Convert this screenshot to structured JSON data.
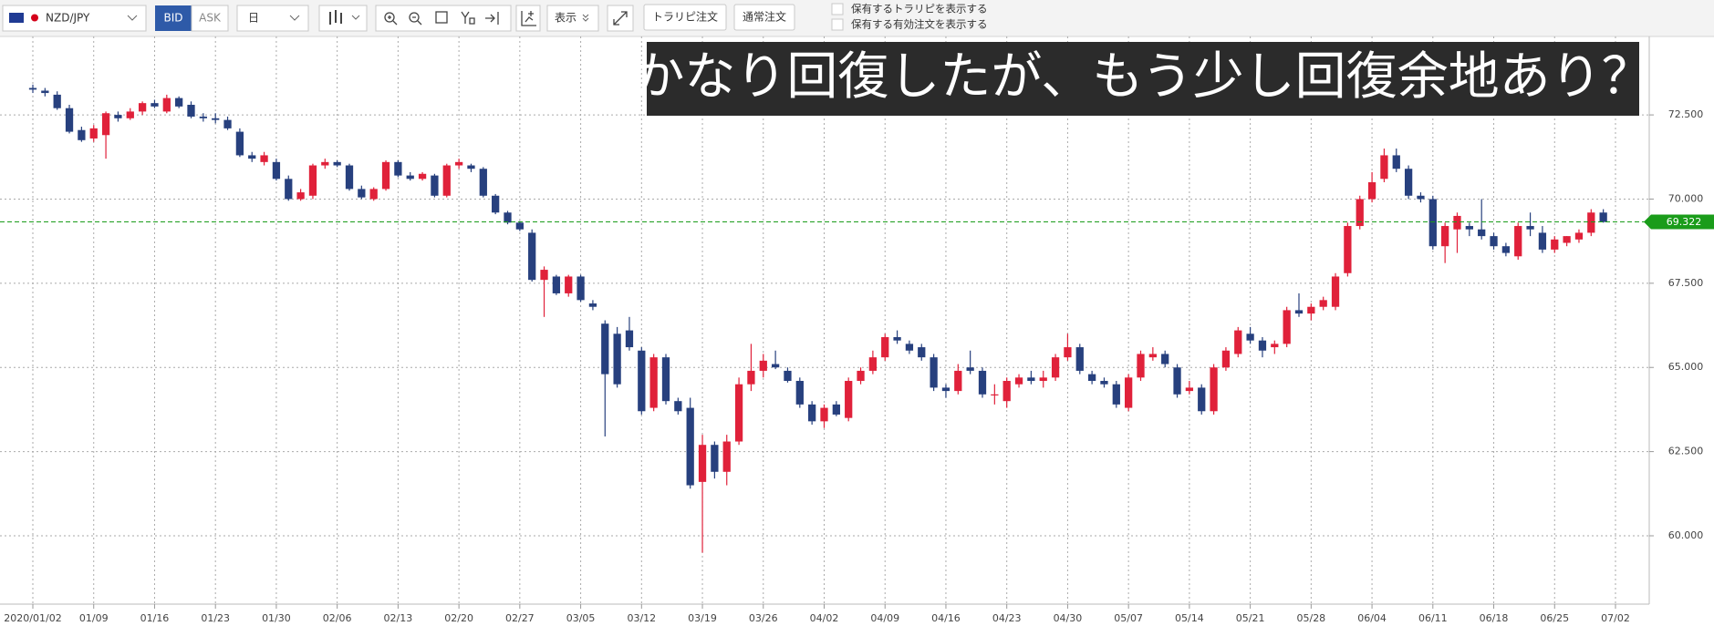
{
  "toolbar": {
    "pair": "NZD/JPY",
    "bid": "BID",
    "ask": "ASK",
    "period": "日",
    "display": "表示",
    "buttons": [
      "トラリピ注文",
      "通常注文"
    ],
    "checkboxes": [
      "保有するトラリピを表示する",
      "保有する有効注文を表示する"
    ]
  },
  "chart_data": {
    "type": "candlestick",
    "annotation": "かなり回復したが、もう少し回復余地あり？",
    "categories": [
      "2020/01/02",
      null,
      null,
      null,
      null,
      "01/09",
      null,
      null,
      null,
      null,
      "01/16",
      null,
      null,
      null,
      null,
      "01/23",
      null,
      null,
      null,
      null,
      "01/30",
      null,
      null,
      null,
      null,
      "02/06",
      null,
      null,
      null,
      null,
      "02/13",
      null,
      null,
      null,
      null,
      "02/20",
      null,
      null,
      null,
      null,
      "02/27",
      null,
      null,
      null,
      null,
      "03/05",
      null,
      null,
      null,
      null,
      "03/12",
      null,
      null,
      null,
      null,
      "03/19",
      null,
      null,
      null,
      null,
      "03/26",
      null,
      null,
      null,
      null,
      "04/02",
      null,
      null,
      null,
      null,
      "04/09",
      null,
      null,
      null,
      null,
      "04/16",
      null,
      null,
      null,
      null,
      "04/23",
      null,
      null,
      null,
      null,
      "04/30",
      null,
      null,
      null,
      null,
      "05/07",
      null,
      null,
      null,
      null,
      "05/14",
      null,
      null,
      null,
      null,
      "05/21",
      null,
      null,
      null,
      null,
      "05/28",
      null,
      null,
      null,
      null,
      "06/04",
      null,
      null,
      null,
      null,
      "06/11",
      null,
      null,
      null,
      null,
      "06/18",
      null,
      null,
      null,
      null,
      "06/25",
      null,
      null,
      null,
      null,
      "07/02"
    ],
    "ohlc": [
      [
        73.3,
        73.4,
        73.15,
        73.25
      ],
      [
        73.22,
        73.3,
        73.05,
        73.15
      ],
      [
        73.1,
        73.2,
        72.65,
        72.7
      ],
      [
        72.7,
        72.8,
        71.95,
        72.0
      ],
      [
        72.05,
        72.15,
        71.7,
        71.75
      ],
      [
        71.8,
        72.2,
        71.7,
        72.1
      ],
      [
        71.9,
        72.6,
        71.2,
        72.55
      ],
      [
        72.5,
        72.6,
        72.3,
        72.4
      ],
      [
        72.4,
        72.7,
        72.35,
        72.6
      ],
      [
        72.6,
        72.9,
        72.5,
        72.85
      ],
      [
        72.85,
        72.95,
        72.7,
        72.75
      ],
      [
        72.6,
        73.1,
        72.55,
        73.0
      ],
      [
        73.0,
        73.05,
        72.7,
        72.75
      ],
      [
        72.8,
        72.9,
        72.4,
        72.45
      ],
      [
        72.45,
        72.55,
        72.3,
        72.4
      ],
      [
        72.4,
        72.55,
        72.25,
        72.35
      ],
      [
        72.35,
        72.45,
        72.05,
        72.1
      ],
      [
        72.0,
        72.1,
        71.25,
        71.3
      ],
      [
        71.3,
        71.4,
        71.1,
        71.2
      ],
      [
        71.1,
        71.4,
        71.0,
        71.3
      ],
      [
        71.1,
        71.2,
        70.55,
        70.6
      ],
      [
        70.6,
        70.7,
        69.95,
        70.0
      ],
      [
        70.0,
        70.3,
        69.95,
        70.2
      ],
      [
        70.1,
        71.05,
        70.0,
        71.0
      ],
      [
        71.0,
        71.2,
        70.9,
        71.1
      ],
      [
        71.1,
        71.15,
        70.95,
        71.0
      ],
      [
        71.0,
        71.05,
        70.25,
        70.3
      ],
      [
        70.3,
        70.4,
        70.0,
        70.05
      ],
      [
        70.0,
        70.35,
        69.95,
        70.3
      ],
      [
        70.3,
        71.15,
        70.25,
        71.1
      ],
      [
        71.1,
        71.15,
        70.65,
        70.7
      ],
      [
        70.7,
        70.8,
        70.55,
        70.6
      ],
      [
        70.6,
        70.8,
        70.55,
        70.75
      ],
      [
        70.7,
        70.75,
        70.05,
        70.1
      ],
      [
        70.1,
        71.05,
        70.05,
        71.0
      ],
      [
        71.0,
        71.2,
        70.9,
        71.1
      ],
      [
        71.0,
        71.05,
        70.8,
        70.9
      ],
      [
        70.9,
        70.95,
        70.05,
        70.1
      ],
      [
        70.1,
        70.15,
        69.55,
        69.6
      ],
      [
        69.6,
        69.65,
        69.25,
        69.3
      ],
      [
        69.3,
        69.35,
        69.05,
        69.1
      ],
      [
        69.0,
        69.1,
        67.55,
        67.6
      ],
      [
        67.6,
        68.0,
        66.5,
        67.9
      ],
      [
        67.7,
        67.75,
        67.15,
        67.2
      ],
      [
        67.2,
        67.75,
        67.1,
        67.7
      ],
      [
        67.7,
        67.75,
        66.95,
        67.0
      ],
      [
        66.9,
        67.0,
        66.7,
        66.8
      ],
      [
        66.3,
        66.4,
        62.95,
        64.8
      ],
      [
        66.0,
        66.2,
        64.4,
        64.5
      ],
      [
        66.1,
        66.5,
        65.5,
        65.6
      ],
      [
        65.5,
        65.6,
        63.6,
        63.7
      ],
      [
        63.8,
        65.4,
        63.7,
        65.3
      ],
      [
        65.3,
        65.4,
        63.9,
        64.0
      ],
      [
        64.0,
        64.1,
        63.6,
        63.7
      ],
      [
        63.8,
        64.1,
        61.4,
        61.5
      ],
      [
        61.6,
        63.0,
        59.5,
        62.7
      ],
      [
        62.7,
        62.8,
        61.7,
        61.9
      ],
      [
        61.9,
        63.0,
        61.5,
        62.8
      ],
      [
        62.8,
        64.7,
        62.7,
        64.5
      ],
      [
        64.5,
        65.7,
        64.3,
        64.9
      ],
      [
        64.9,
        65.4,
        64.7,
        65.2
      ],
      [
        65.1,
        65.5,
        64.95,
        65.0
      ],
      [
        64.9,
        65.0,
        64.55,
        64.6
      ],
      [
        64.6,
        64.7,
        63.8,
        63.9
      ],
      [
        63.9,
        64.0,
        63.3,
        63.4
      ],
      [
        63.4,
        63.9,
        63.2,
        63.8
      ],
      [
        63.9,
        64.0,
        63.55,
        63.6
      ],
      [
        63.5,
        64.7,
        63.4,
        64.6
      ],
      [
        64.6,
        65.0,
        64.5,
        64.9
      ],
      [
        64.9,
        65.5,
        64.8,
        65.3
      ],
      [
        65.3,
        66.0,
        65.2,
        65.9
      ],
      [
        65.9,
        66.1,
        65.7,
        65.8
      ],
      [
        65.7,
        65.8,
        65.4,
        65.5
      ],
      [
        65.6,
        65.7,
        65.2,
        65.3
      ],
      [
        65.3,
        65.4,
        64.3,
        64.4
      ],
      [
        64.4,
        64.5,
        64.1,
        64.3
      ],
      [
        64.3,
        65.1,
        64.2,
        64.9
      ],
      [
        65.0,
        65.5,
        64.8,
        64.9
      ],
      [
        64.9,
        65.0,
        64.1,
        64.2
      ],
      [
        64.2,
        64.5,
        63.9,
        64.2
      ],
      [
        64.0,
        64.7,
        63.8,
        64.6
      ],
      [
        64.5,
        64.8,
        64.4,
        64.7
      ],
      [
        64.7,
        64.9,
        64.5,
        64.6
      ],
      [
        64.6,
        64.9,
        64.4,
        64.7
      ],
      [
        64.7,
        65.4,
        64.6,
        65.3
      ],
      [
        65.3,
        66.0,
        65.2,
        65.6
      ],
      [
        65.6,
        65.7,
        64.8,
        64.9
      ],
      [
        64.8,
        64.9,
        64.5,
        64.6
      ],
      [
        64.6,
        64.7,
        64.4,
        64.5
      ],
      [
        64.5,
        64.6,
        63.8,
        63.9
      ],
      [
        63.8,
        64.8,
        63.7,
        64.7
      ],
      [
        64.7,
        65.5,
        64.6,
        65.4
      ],
      [
        65.3,
        65.6,
        65.2,
        65.4
      ],
      [
        65.4,
        65.5,
        65.0,
        65.1
      ],
      [
        65.0,
        65.1,
        64.1,
        64.2
      ],
      [
        64.3,
        64.6,
        64.2,
        64.4
      ],
      [
        64.4,
        64.5,
        63.6,
        63.7
      ],
      [
        63.7,
        65.1,
        63.6,
        65.0
      ],
      [
        65.0,
        65.6,
        64.9,
        65.5
      ],
      [
        65.4,
        66.2,
        65.3,
        66.1
      ],
      [
        66.0,
        66.2,
        65.7,
        65.8
      ],
      [
        65.8,
        65.9,
        65.3,
        65.5
      ],
      [
        65.6,
        65.8,
        65.4,
        65.7
      ],
      [
        65.7,
        66.8,
        65.6,
        66.7
      ],
      [
        66.7,
        67.2,
        66.5,
        66.6
      ],
      [
        66.6,
        66.9,
        66.4,
        66.8
      ],
      [
        66.8,
        67.1,
        66.7,
        67.0
      ],
      [
        66.8,
        67.8,
        66.7,
        67.7
      ],
      [
        67.8,
        69.3,
        67.7,
        69.2
      ],
      [
        69.2,
        70.1,
        69.1,
        70.0
      ],
      [
        70.0,
        70.8,
        69.9,
        70.5
      ],
      [
        70.6,
        71.5,
        70.5,
        71.3
      ],
      [
        71.3,
        71.5,
        70.8,
        70.9
      ],
      [
        70.9,
        71.0,
        70.0,
        70.1
      ],
      [
        70.1,
        70.2,
        69.9,
        70.0
      ],
      [
        70.0,
        70.1,
        68.5,
        68.6
      ],
      [
        68.6,
        69.3,
        68.1,
        69.2
      ],
      [
        69.1,
        69.6,
        68.4,
        69.5
      ],
      [
        69.2,
        69.3,
        68.9,
        69.1
      ],
      [
        69.1,
        70.0,
        68.8,
        68.9
      ],
      [
        68.9,
        69.0,
        68.5,
        68.6
      ],
      [
        68.6,
        68.7,
        68.3,
        68.4
      ],
      [
        68.3,
        69.3,
        68.2,
        69.2
      ],
      [
        69.2,
        69.6,
        68.9,
        69.1
      ],
      [
        69.0,
        69.2,
        68.4,
        68.5
      ],
      [
        68.5,
        68.9,
        68.4,
        68.8
      ],
      [
        68.7,
        68.9,
        68.6,
        68.9
      ],
      [
        68.8,
        69.1,
        68.7,
        69.0
      ],
      [
        69.0,
        69.7,
        68.9,
        69.6
      ],
      [
        69.6,
        69.7,
        69.3,
        69.32
      ],
      null
    ],
    "up_color": "#e0213a",
    "down_color": "#27407e",
    "ylim": [
      57.97,
      74.83
    ],
    "yticks": [
      {
        "value": 60,
        "label": "60.000"
      },
      {
        "value": 62.5,
        "label": "62.500"
      },
      {
        "value": 65,
        "label": "65.000"
      },
      {
        "value": 67.5,
        "label": "67.500"
      },
      {
        "value": 70,
        "label": "70.000"
      },
      {
        "value": 72.5,
        "label": "72.500"
      }
    ],
    "grid": true,
    "current_price": {
      "value": 69.322,
      "label": "69.322"
    },
    "current_price_color": "#1a9c1a"
  }
}
